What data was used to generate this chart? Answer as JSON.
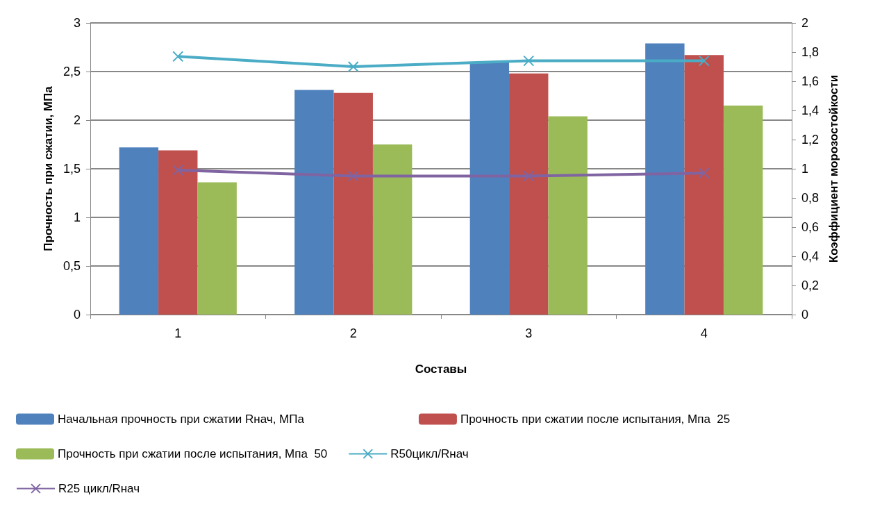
{
  "chart_data": {
    "type": "bar",
    "xlabel": "Составы",
    "ylabel": "Прочность при сжатии, МПа",
    "y2label": "Коэффициент морозостойкости",
    "categories": [
      "1",
      "2",
      "3",
      "4"
    ],
    "series": [
      {
        "name": "Начальная прочность при сжатии Rнач, МПа",
        "color": "#4f81bd",
        "values": [
          1.72,
          2.31,
          2.6,
          2.79
        ]
      },
      {
        "name": "Прочность при сжатии после испытания, Мпа  25",
        "color": "#c0504d",
        "values": [
          1.69,
          2.28,
          2.48,
          2.67
        ]
      },
      {
        "name": "Прочность при сжатии после испытания, Мпа  50",
        "color": "#9bbb59",
        "values": [
          1.36,
          1.75,
          2.04,
          2.15
        ]
      },
      {
        "name": "R50цикл/Rнач",
        "type": "line",
        "axis": "y2",
        "marker": "cross",
        "color": "#4bacc6",
        "values": [
          1.77,
          1.7,
          1.74,
          1.74
        ]
      },
      {
        "name": "R25 цикл/Rнач",
        "type": "line",
        "axis": "y2",
        "marker": "cross",
        "color": "#8064a2",
        "values": [
          0.99,
          0.95,
          0.95,
          0.97
        ]
      }
    ],
    "ylim": [
      0,
      3
    ],
    "yticks": [
      0,
      {
        "value": 0.5,
        "label": "0,5"
      },
      1,
      {
        "value": 1.5,
        "label": "1,5"
      },
      2,
      {
        "value": 2.5,
        "label": "2,5"
      },
      3
    ],
    "y2lim": [
      0,
      2
    ],
    "y2ticks": [
      0,
      {
        "value": 0.2,
        "label": "0,2"
      },
      {
        "value": 0.4,
        "label": "0,4"
      },
      {
        "value": 0.6,
        "label": "0,6"
      },
      {
        "value": 0.8,
        "label": "0,8"
      },
      1,
      {
        "value": 1.2,
        "label": "1,2"
      },
      {
        "value": 1.4,
        "label": "1,4"
      },
      {
        "value": 1.6,
        "label": "1,6"
      },
      {
        "value": 1.8,
        "label": "1,8"
      },
      2
    ],
    "grid": "y",
    "legend": "bottom"
  }
}
